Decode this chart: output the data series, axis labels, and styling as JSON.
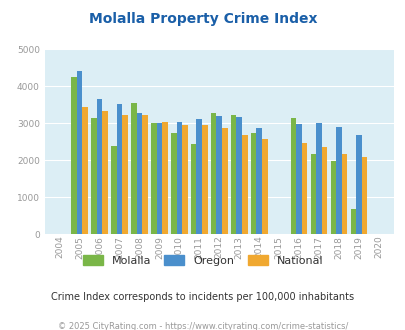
{
  "title": "Molalla Property Crime Index",
  "years": [
    2004,
    2005,
    2006,
    2007,
    2008,
    2009,
    2010,
    2011,
    2012,
    2013,
    2014,
    2015,
    2016,
    2017,
    2018,
    2019,
    2020
  ],
  "molalla": [
    null,
    4250,
    3150,
    2400,
    3550,
    3000,
    2750,
    2450,
    3280,
    3230,
    2750,
    null,
    3150,
    2180,
    1980,
    680,
    null
  ],
  "oregon": [
    null,
    4430,
    3660,
    3530,
    3270,
    3000,
    3040,
    3120,
    3200,
    3180,
    2870,
    null,
    2990,
    3000,
    2910,
    2700,
    null
  ],
  "national": [
    null,
    3450,
    3330,
    3230,
    3220,
    3030,
    2950,
    2950,
    2880,
    2700,
    2580,
    null,
    2460,
    2360,
    2180,
    2090,
    null
  ],
  "molalla_color": "#7ab648",
  "oregon_color": "#4a8fcc",
  "national_color": "#f0a830",
  "plot_bg": "#dceef5",
  "ylim": [
    0,
    5000
  ],
  "yticks": [
    0,
    1000,
    2000,
    3000,
    4000,
    5000
  ],
  "legend_labels": [
    "Molalla",
    "Oregon",
    "National"
  ],
  "subtitle": "Crime Index corresponds to incidents per 100,000 inhabitants",
  "footer": "© 2025 CityRating.com - https://www.cityrating.com/crime-statistics/",
  "title_color": "#1a5fa8",
  "subtitle_color": "#333333",
  "footer_color": "#999999",
  "tick_color": "#999999",
  "year_start": 2004,
  "year_end": 2020
}
